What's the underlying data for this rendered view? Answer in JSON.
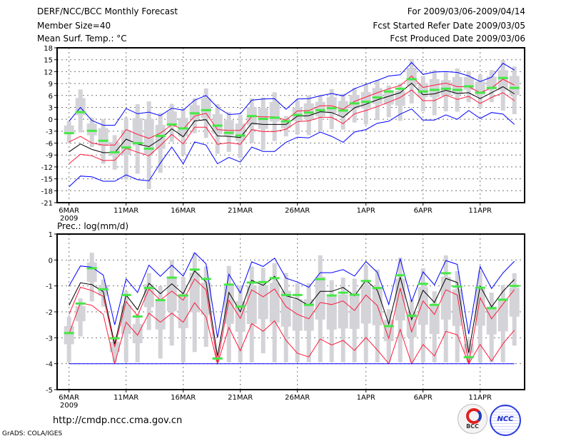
{
  "header": {
    "title": "DERF/NCC/BCC Monthly Forecast",
    "member_size": "Member Size=40",
    "variable": "Mean Surf. Temp.: °C",
    "period": "For 2009/03/06-2009/04/14",
    "started": "Fcst Started Refer Date 2009/03/05",
    "produced": "Fcst Produced Date 2009/03/06"
  },
  "footer": {
    "url": "http://cmdp.ncc.cma.gov.cn",
    "grads": "GrADS: COLA/IGES",
    "logo_bcc": "BCC",
    "logo_ncc": "NCC"
  },
  "colors": {
    "max_min": "#0000ff",
    "percentile": "#ff1a3a",
    "mean": "#000000",
    "obs": "#44e844",
    "spread": "#d3d3d8"
  },
  "chart_data": [
    {
      "type": "line",
      "title": "Mean Surf. Temp.: °C",
      "xlabel_ticks": [
        "6MAR",
        "11MAR",
        "16MAR",
        "21MAR",
        "26MAR",
        "1APR",
        "6APR",
        "11APR"
      ],
      "tick_days": [
        0,
        5,
        10,
        15,
        20,
        26,
        31,
        36
      ],
      "year_label": "2009",
      "ylim": [
        -21,
        18
      ],
      "yticks": [
        18,
        15,
        12,
        9,
        6,
        3,
        0,
        -3,
        -6,
        -9,
        -12,
        -15,
        -18,
        -21
      ],
      "grid": true,
      "days": 40,
      "series": [
        {
          "name": "max",
          "color": "#0000ff",
          "values": [
            -0.5,
            3,
            -0.3,
            -1.5,
            -1.5,
            2.7,
            1.4,
            1.8,
            0.9,
            2.8,
            2.3,
            4.8,
            6,
            3,
            1.2,
            1.4,
            4.8,
            5.1,
            5.2,
            2.5,
            5.1,
            5.2,
            5.9,
            6.5,
            5.9,
            7.7,
            8.8,
            9.8,
            10.9,
            11.2,
            14.3,
            11.3,
            11.9,
            12,
            11.8,
            10.9,
            9.5,
            10.6,
            14.1,
            12.4
          ]
        },
        {
          "name": "upper",
          "color": "#ff1a3a",
          "values": [
            -5.7,
            -4.3,
            -6,
            -6.5,
            -6.5,
            -2.6,
            -3.8,
            -4.8,
            -3.5,
            -1.4,
            -2.5,
            0.8,
            1.5,
            -2.6,
            -2.8,
            -2.8,
            0.7,
            0.6,
            0.6,
            -0.2,
            2.1,
            2.2,
            3.4,
            3.4,
            2.5,
            4.5,
            5.6,
            6.7,
            7.7,
            8.5,
            10.9,
            8,
            8.6,
            9.1,
            8.2,
            8.2,
            6.7,
            7.9,
            10.1,
            8.6
          ]
        },
        {
          "name": "mean",
          "color": "#000000",
          "values": [
            -8.2,
            -6.2,
            -7.6,
            -8.4,
            -8.4,
            -5,
            -6.2,
            -6.9,
            -5,
            -2.4,
            -4.4,
            -0.4,
            -0.1,
            -4.2,
            -4.3,
            -4.6,
            -1,
            -1.3,
            -1.3,
            -1.3,
            0.8,
            0.9,
            1.9,
            1.7,
            0.5,
            2.9,
            3.8,
            4.9,
            5.8,
            6.7,
            9.1,
            6.2,
            6.4,
            7.3,
            6.5,
            6.7,
            5.2,
            6.7,
            8.2,
            6.4
          ]
        },
        {
          "name": "lower",
          "color": "#ff1a3a",
          "values": [
            -11.2,
            -8.8,
            -9.2,
            -10.4,
            -10.3,
            -7.3,
            -8.3,
            -9.2,
            -6.6,
            -3.8,
            -6.2,
            -2,
            -2,
            -6.3,
            -5.9,
            -6.3,
            -2.6,
            -3.1,
            -3.1,
            -2.5,
            -0.6,
            -0.4,
            0.5,
            0.5,
            -1.1,
            1.4,
            2.2,
            3.2,
            4.3,
            5.5,
            7.4,
            4.7,
            4.7,
            6.1,
            5,
            5.8,
            4,
            5.5,
            6.7,
            4.7
          ]
        },
        {
          "name": "min",
          "color": "#0000ff",
          "values": [
            -17,
            -14.3,
            -14.5,
            -15.6,
            -15.6,
            -14,
            -15.2,
            -15.5,
            -11,
            -7,
            -11.2,
            -5.7,
            -6.5,
            -11.2,
            -9.6,
            -10.8,
            -7,
            -8.1,
            -8.1,
            -5.8,
            -4.5,
            -4.7,
            -3.2,
            -4.3,
            -5.8,
            -3.2,
            -2.6,
            -1,
            -0.5,
            1.3,
            2.6,
            -0.2,
            -0.2,
            1.1,
            0,
            2.2,
            0.2,
            1.7,
            1.3,
            -1.3
          ]
        }
      ],
      "spread_low": [
        -5.8,
        -3.3,
        -7,
        -11.2,
        -12.7,
        -15.2,
        -13.7,
        -17.6,
        -13.5,
        -5.7,
        -9,
        -3.5,
        -4.7,
        -8.7,
        -8.2,
        -9.8,
        -6,
        -7.7,
        -5.5,
        -4.3,
        -3.8,
        -4,
        -2.9,
        -2.5,
        -2.6,
        -0.8,
        -1.3,
        -0.2,
        0.5,
        -0.4,
        4,
        2,
        1,
        2,
        1.9,
        4.3,
        2.8,
        4.3,
        2.2,
        1.3
      ],
      "spread_high": [
        -0.5,
        7.5,
        0.4,
        0,
        -4,
        0.4,
        3.8,
        4.5,
        1.6,
        3.9,
        2.7,
        5.3,
        7.8,
        3.8,
        1.8,
        1.1,
        5.3,
        5.5,
        6.8,
        0.8,
        4.7,
        6,
        6.2,
        7.6,
        6.4,
        7.9,
        8.9,
        9.9,
        8.5,
        9.1,
        15.2,
        10.9,
        12.4,
        11.8,
        12.8,
        12.2,
        11.2,
        12.4,
        14.9,
        13.3
      ],
      "observed": [
        -3.5,
        1.8,
        -2.9,
        -5.4,
        -8.3,
        -7.1,
        -6,
        -7.4,
        -4.2,
        -1.3,
        -2.3,
        1.5,
        2.3,
        -1.6,
        -3.4,
        -4.1,
        0.8,
        0.1,
        0.4,
        -0.5,
        1.1,
        1.7,
        2.3,
        2.8,
        2.2,
        4,
        4.4,
        5.5,
        7,
        7.7,
        10.1,
        7,
        7.4,
        7.7,
        7.4,
        8.3,
        6.7,
        7.9,
        10.4,
        7.9
      ]
    },
    {
      "type": "line",
      "title": "Prec.: log(mm/d)",
      "xlabel_ticks": [
        "6MAR",
        "11MAR",
        "16MAR",
        "21MAR",
        "26MAR",
        "1APR",
        "6APR",
        "11APR"
      ],
      "tick_days": [
        0,
        5,
        10,
        15,
        20,
        26,
        31,
        36
      ],
      "year_label": "2009",
      "ylim": [
        -5,
        1
      ],
      "yticks": [
        1,
        0,
        -1,
        -2,
        -3,
        -4,
        -5
      ],
      "grid": true,
      "days": 40,
      "series": [
        {
          "name": "max",
          "color": "#0000ff",
          "values": [
            -1.0,
            -0.23,
            -0.28,
            -0.58,
            -2.5,
            -0.73,
            -1.25,
            -0.2,
            -0.63,
            -0.2,
            -0.62,
            0.28,
            -0.15,
            -3.0,
            -0.55,
            -1.27,
            -0.07,
            -0.25,
            0.07,
            -0.7,
            -0.85,
            -1.05,
            -0.49,
            -0.49,
            -0.37,
            -0.62,
            -0.06,
            -0.48,
            -1.72,
            0.05,
            -1.6,
            -0.46,
            -0.96,
            -0.02,
            -0.17,
            -2.86,
            -0.25,
            -1.1,
            -0.5,
            -0.05
          ]
        },
        {
          "name": "mean",
          "color": "#000000",
          "values": [
            -1.75,
            -0.88,
            -0.95,
            -1.22,
            -3.25,
            -1.35,
            -1.92,
            -0.9,
            -1.3,
            -0.92,
            -1.3,
            -0.42,
            -0.85,
            -3.7,
            -1.25,
            -2.0,
            -0.78,
            -0.98,
            -0.63,
            -1.38,
            -1.5,
            -1.76,
            -1.21,
            -1.21,
            -1.06,
            -1.38,
            -0.78,
            -1.17,
            -2.47,
            -0.66,
            -2.3,
            -1.17,
            -1.64,
            -0.71,
            -0.87,
            -3.58,
            -1.01,
            -1.81,
            -1.21,
            -0.75
          ]
        },
        {
          "name": "upper",
          "color": "#ff1a3a",
          "values": [
            -2.1,
            -1.05,
            -1.18,
            -1.4,
            -3.35,
            -1.6,
            -2.15,
            -1.12,
            -1.55,
            -1.2,
            -1.55,
            -0.73,
            -1.15,
            -3.95,
            -1.55,
            -2.25,
            -1.15,
            -1.42,
            -1.12,
            -1.8,
            -2.1,
            -2.27,
            -1.64,
            -1.72,
            -1.58,
            -1.95,
            -1.35,
            -1.76,
            -3.03,
            -1.09,
            -2.77,
            -1.58,
            -2.1,
            -1.15,
            -1.35,
            -4,
            -1.46,
            -2.27,
            -1.7,
            -1.14
          ]
        },
        {
          "name": "lower",
          "color": "#ff1a3a",
          "values": [
            -2.85,
            -1.65,
            -1.75,
            -2.1,
            -4,
            -2.4,
            -2.9,
            -2.05,
            -2.4,
            -2.05,
            -2.4,
            -1.65,
            -2.2,
            -4,
            -2.6,
            -3.5,
            -2.45,
            -2.75,
            -2.35,
            -3.1,
            -3.6,
            -3.74,
            -3.05,
            -3.28,
            -3.1,
            -3.49,
            -2.99,
            -3.47,
            -4,
            -2.68,
            -4,
            -3.26,
            -3.7,
            -2.75,
            -2.89,
            -4,
            -3.26,
            -3.9,
            -3.23,
            -2.71
          ]
        },
        {
          "name": "min",
          "color": "#0000ff",
          "values": [
            -4,
            -4,
            -4,
            -4,
            -4,
            -4,
            -4,
            -4,
            -4,
            -4,
            -4,
            -4,
            -4,
            -4,
            -4,
            -4,
            -4,
            -4,
            -4,
            -4,
            -4,
            -4,
            -4,
            -4,
            -4,
            -4,
            -4,
            -4,
            -4,
            -4,
            -4,
            -4,
            -4,
            -4,
            -4,
            -4,
            -4,
            -4,
            -4,
            -4
          ]
        }
      ],
      "spread_low": [
        -3.95,
        -2.95,
        -1.6,
        -1.8,
        -3.95,
        -3.95,
        -3.95,
        -2.7,
        -3.8,
        -3.3,
        -3.95,
        -3.55,
        -3.35,
        -3.95,
        -3.95,
        -3.95,
        -3.95,
        -3.6,
        -3.95,
        -3.95,
        -3.95,
        -3.95,
        -3.95,
        -3.95,
        -3.95,
        -3.95,
        -3.95,
        -3.95,
        -3.95,
        -3.95,
        -3.95,
        -3.95,
        -3.95,
        -3.95,
        -3.95,
        -3.95,
        -3.95,
        -3.95,
        -3.95,
        -3.3
      ],
      "spread_high": [
        -2.2,
        -1.48,
        0.28,
        -0.75,
        -2.95,
        -1.2,
        -2.1,
        -0.5,
        -1.0,
        0,
        -0.65,
        0.28,
        -0.25,
        -3.7,
        -0.23,
        -1.0,
        -0.25,
        -0.3,
        -0.12,
        -0.5,
        -0.9,
        -0.9,
        0.18,
        -0.78,
        -0.68,
        -0.72,
        -0.2,
        -0.37,
        -1.9,
        0.09,
        -1.53,
        -0.32,
        -1.21,
        0.18,
        -0.43,
        -3.05,
        -0.41,
        -1.26,
        -0.96,
        -0.51
      ],
      "observed": [
        -2.82,
        -1.68,
        -0.32,
        -1.13,
        -3.02,
        -1.35,
        -2.18,
        -1.08,
        -1.55,
        -0.68,
        -1.37,
        -0.37,
        -0.73,
        -3.8,
        -0.95,
        -1.8,
        -0.87,
        -0.85,
        -0.7,
        -1.35,
        -1.35,
        -1.73,
        -0.74,
        -1.37,
        -1.26,
        -1.34,
        -0.81,
        -1.08,
        -2.55,
        -0.59,
        -2.15,
        -0.92,
        -1.73,
        -0.51,
        -1.02,
        -3.75,
        -1.07,
        -1.86,
        -1.53,
        -1.0
      ]
    }
  ]
}
